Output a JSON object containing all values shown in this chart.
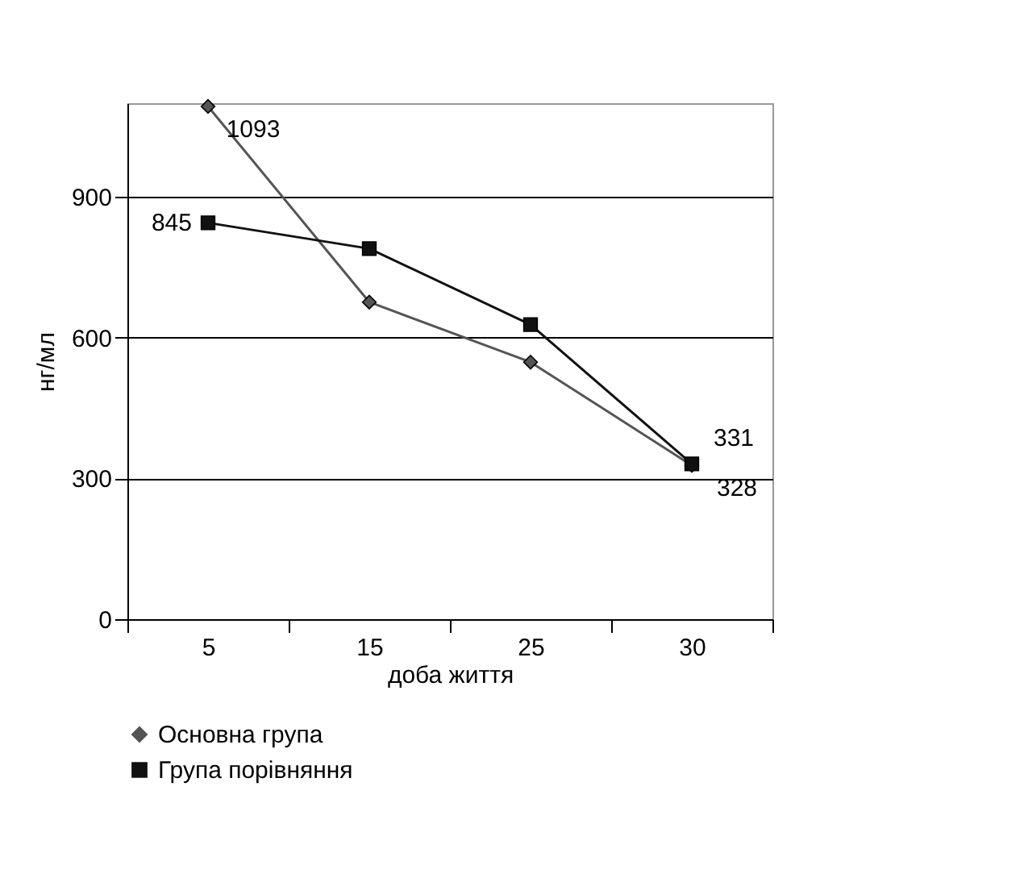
{
  "chart_data": {
    "type": "line",
    "xlabel": "доба життя",
    "ylabel": "нг/мл",
    "categories": [
      "5",
      "15",
      "25",
      "30"
    ],
    "series": [
      {
        "name": "Основна група",
        "color": "#555555",
        "marker": "diamond",
        "values": [
          1093,
          676,
          548,
          328
        ],
        "value_labels": [
          "1093",
          null,
          null,
          "328"
        ]
      },
      {
        "name": "Група порівняння",
        "color": "#111111",
        "marker": "square",
        "values": [
          845,
          790,
          628,
          331
        ],
        "value_labels": [
          "845",
          null,
          null,
          "331"
        ]
      }
    ],
    "ylim": [
      0,
      1100
    ],
    "yticks": [
      0,
      300,
      600,
      900
    ],
    "grid": "y",
    "legend": "bottom"
  }
}
